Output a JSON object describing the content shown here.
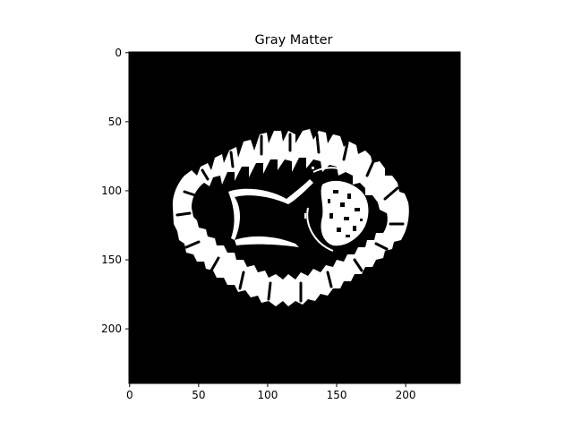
{
  "title": "Gray Matter",
  "image_description_kind": "binary gray-matter segmentation mask of an axial brain MRI slice (white = gray matter, black = background)",
  "colors": {
    "background": "#000000",
    "mask": "#ffffff",
    "page": "#ffffff",
    "axes": "#000000"
  },
  "x_axis": {
    "ticks": [
      "0",
      "50",
      "100",
      "150",
      "200"
    ],
    "tick_values": [
      0,
      50,
      100,
      150,
      200
    ],
    "range": [
      0,
      240
    ]
  },
  "y_axis": {
    "ticks": [
      "0",
      "50",
      "100",
      "150",
      "200"
    ],
    "tick_values": [
      0,
      50,
      100,
      150,
      200
    ],
    "range": [
      0,
      240
    ],
    "inverted": true
  }
}
